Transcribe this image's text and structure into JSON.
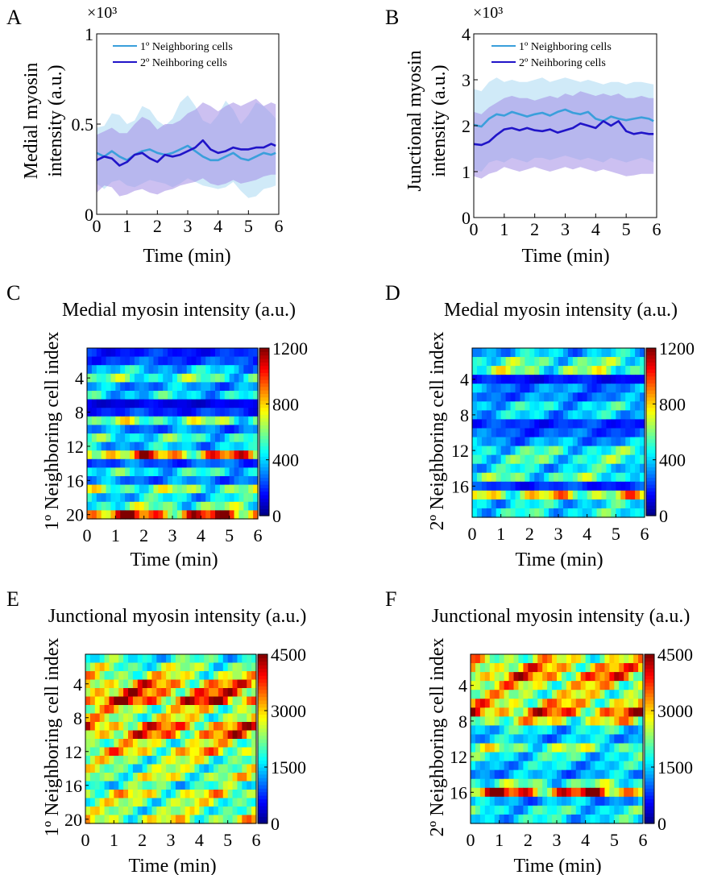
{
  "colors": {
    "series1": "#3a9fdb",
    "series2": "#2014c8",
    "band1": "#a9d8f2",
    "band2": "#a28de6"
  },
  "chart_data": [
    {
      "panel": "A",
      "type": "line",
      "title": "",
      "ylabel_line1": "Medial myosin",
      "ylabel_line2": "intensity (a.u.)",
      "xlabel": "Time (min)",
      "y_multiplier": "×10³",
      "xlim": [
        0,
        6
      ],
      "ylim": [
        0,
        1
      ],
      "xticks": [
        0,
        1,
        2,
        3,
        4,
        5,
        6
      ],
      "yticks": [
        0,
        0.5,
        1
      ],
      "ytick_labels": [
        "0",
        "0.5",
        "1"
      ],
      "legend_position": "top-left",
      "x": [
        0,
        0.25,
        0.5,
        0.75,
        1,
        1.25,
        1.5,
        1.75,
        2,
        2.25,
        2.5,
        2.75,
        3,
        3.25,
        3.5,
        3.75,
        4,
        4.25,
        4.5,
        4.75,
        5,
        5.25,
        5.5,
        5.75,
        5.9
      ],
      "series": [
        {
          "name": "1º Neighboring cells",
          "color_key": "series1",
          "band_color_key": "band1",
          "values": [
            0.34,
            0.32,
            0.35,
            0.32,
            0.3,
            0.33,
            0.35,
            0.36,
            0.34,
            0.33,
            0.34,
            0.36,
            0.38,
            0.35,
            0.32,
            0.3,
            0.3,
            0.32,
            0.34,
            0.31,
            0.3,
            0.32,
            0.34,
            0.33,
            0.34
          ],
          "lower": [
            0.17,
            0.14,
            0.18,
            0.19,
            0.16,
            0.15,
            0.17,
            0.19,
            0.18,
            0.17,
            0.15,
            0.17,
            0.2,
            0.18,
            0.16,
            0.15,
            0.14,
            0.15,
            0.18,
            0.13,
            0.09,
            0.1,
            0.14,
            0.15,
            0.16
          ],
          "upper": [
            0.48,
            0.49,
            0.56,
            0.55,
            0.5,
            0.52,
            0.6,
            0.58,
            0.52,
            0.49,
            0.53,
            0.62,
            0.66,
            0.6,
            0.52,
            0.5,
            0.55,
            0.63,
            0.58,
            0.5,
            0.55,
            0.62,
            0.6,
            0.56,
            0.53
          ]
        },
        {
          "name": "2º Neihboring cells",
          "color_key": "series2",
          "band_color_key": "band2",
          "values": [
            0.3,
            0.32,
            0.31,
            0.27,
            0.29,
            0.33,
            0.34,
            0.31,
            0.29,
            0.33,
            0.32,
            0.33,
            0.35,
            0.37,
            0.41,
            0.36,
            0.34,
            0.35,
            0.37,
            0.36,
            0.36,
            0.37,
            0.37,
            0.39,
            0.38
          ],
          "lower": [
            0.12,
            0.16,
            0.15,
            0.1,
            0.11,
            0.13,
            0.14,
            0.12,
            0.11,
            0.13,
            0.14,
            0.16,
            0.17,
            0.18,
            0.2,
            0.17,
            0.16,
            0.17,
            0.19,
            0.17,
            0.18,
            0.19,
            0.21,
            0.22,
            0.22
          ],
          "upper": [
            0.44,
            0.46,
            0.48,
            0.45,
            0.45,
            0.5,
            0.54,
            0.52,
            0.47,
            0.5,
            0.5,
            0.52,
            0.56,
            0.58,
            0.62,
            0.6,
            0.57,
            0.6,
            0.62,
            0.6,
            0.62,
            0.64,
            0.6,
            0.62,
            0.61
          ]
        }
      ]
    },
    {
      "panel": "B",
      "type": "line",
      "title": "",
      "ylabel_line1": "Junctional myosin",
      "ylabel_line2": "intensity (a.u.)",
      "xlabel": "Time (min)",
      "y_multiplier": "×10³",
      "xlim": [
        0,
        6
      ],
      "ylim": [
        0,
        4
      ],
      "xticks": [
        0,
        1,
        2,
        3,
        4,
        5,
        6
      ],
      "yticks": [
        0,
        1,
        2,
        3,
        4
      ],
      "ytick_labels": [
        "0",
        "1",
        "2",
        "3",
        "4"
      ],
      "legend_position": "top-left",
      "x": [
        0,
        0.25,
        0.5,
        0.75,
        1,
        1.25,
        1.5,
        1.75,
        2,
        2.25,
        2.5,
        2.75,
        3,
        3.25,
        3.5,
        3.75,
        4,
        4.25,
        4.5,
        4.75,
        5,
        5.25,
        5.5,
        5.75,
        5.9
      ],
      "series": [
        {
          "name": "1º Neighboring cells",
          "color_key": "series1",
          "band_color_key": "band1",
          "values": [
            2.02,
            1.98,
            2.15,
            2.25,
            2.22,
            2.3,
            2.25,
            2.2,
            2.25,
            2.28,
            2.22,
            2.3,
            2.35,
            2.28,
            2.25,
            2.3,
            2.15,
            2.1,
            2.2,
            2.15,
            2.12,
            2.15,
            2.18,
            2.15,
            2.1
          ],
          "lower": [
            1.05,
            1.0,
            1.2,
            1.25,
            1.2,
            1.3,
            1.25,
            1.2,
            1.3,
            1.3,
            1.25,
            1.3,
            1.35,
            1.3,
            1.25,
            1.3,
            1.25,
            1.2,
            1.3,
            1.25,
            1.2,
            1.25,
            1.3,
            1.25,
            1.2
          ],
          "upper": [
            2.8,
            2.75,
            2.95,
            3.05,
            2.95,
            3.0,
            2.95,
            2.95,
            3.0,
            3.05,
            2.95,
            3.0,
            3.05,
            3.0,
            2.95,
            3.0,
            2.95,
            2.9,
            2.95,
            2.95,
            2.9,
            2.95,
            2.95,
            2.92,
            2.9
          ]
        },
        {
          "name": "2º Neihboring cells",
          "color_key": "series2",
          "band_color_key": "band2",
          "values": [
            1.6,
            1.58,
            1.65,
            1.8,
            1.92,
            1.95,
            1.9,
            1.95,
            1.9,
            1.88,
            1.92,
            1.85,
            1.9,
            1.95,
            2.05,
            2.0,
            1.95,
            2.1,
            2.0,
            2.1,
            1.88,
            1.82,
            1.85,
            1.82,
            1.82
          ],
          "lower": [
            0.9,
            0.85,
            0.95,
            1.0,
            1.1,
            1.05,
            1.0,
            1.05,
            1.1,
            1.05,
            1.0,
            1.05,
            1.1,
            1.05,
            1.1,
            1.05,
            1.0,
            1.05,
            1.0,
            0.95,
            0.9,
            0.92,
            0.95,
            0.95,
            0.95
          ],
          "upper": [
            2.3,
            2.25,
            2.4,
            2.5,
            2.6,
            2.65,
            2.6,
            2.6,
            2.55,
            2.6,
            2.65,
            2.6,
            2.7,
            2.65,
            2.75,
            2.7,
            2.65,
            2.7,
            2.65,
            2.7,
            2.6,
            2.6,
            2.65,
            2.6,
            2.6
          ]
        }
      ]
    },
    {
      "panel": "C",
      "type": "heatmap",
      "title": "Medial myosin intensity (a.u.)",
      "xlabel": "Time (min)",
      "ylabel": "1º Neighboring cell index",
      "xticks": [
        0,
        1,
        2,
        3,
        4,
        5,
        6
      ],
      "yticks": [
        4,
        8,
        12,
        16,
        20
      ],
      "rows": 20,
      "cols": 36,
      "colorbar": {
        "min": 0,
        "max": 1200,
        "ticks": [
          0,
          400,
          800,
          1200
        ]
      },
      "row_means": [
        180,
        230,
        380,
        520,
        330,
        420,
        120,
        200,
        580,
        300,
        480,
        380,
        860,
        250,
        450,
        300,
        580,
        420,
        550,
        950
      ]
    },
    {
      "panel": "D",
      "type": "heatmap",
      "title": "Medial myosin intensity (a.u.)",
      "xlabel": "Time (min)",
      "ylabel": "2º Neighboring cell index",
      "xticks": [
        0,
        1,
        2,
        3,
        4,
        5,
        6
      ],
      "yticks": [
        4,
        8,
        12,
        16
      ],
      "rows": 19,
      "cols": 36,
      "colorbar": {
        "min": 0,
        "max": 1200,
        "ticks": [
          0,
          400,
          800,
          1200
        ]
      },
      "row_means": [
        380,
        520,
        580,
        160,
        300,
        300,
        420,
        380,
        200,
        250,
        330,
        480,
        500,
        420,
        520,
        200,
        720,
        420,
        450
      ]
    },
    {
      "panel": "E",
      "type": "heatmap",
      "title": "Junctional myosin intensity (a.u.)",
      "xlabel": "Time (min)",
      "ylabel": "1º Neighboring cell index",
      "xticks": [
        0,
        1,
        2,
        3,
        4,
        5,
        6
      ],
      "yticks": [
        4,
        8,
        12,
        16,
        20
      ],
      "rows": 20,
      "cols": 36,
      "colorbar": {
        "min": 0,
        "max": 4500,
        "ticks": [
          0,
          1500,
          3000,
          4500
        ]
      },
      "row_means": [
        1800,
        2200,
        2500,
        3100,
        3300,
        3600,
        2600,
        2500,
        3200,
        3200,
        2500,
        2800,
        2300,
        2200,
        2400,
        1900,
        2600,
        2300,
        2200,
        2500
      ]
    },
    {
      "panel": "F",
      "type": "heatmap",
      "title": "Junctional myosin intensity (a.u.)",
      "xlabel": "Time (min)",
      "ylabel": "2º Neighboring cell index",
      "xticks": [
        0,
        1,
        2,
        3,
        4,
        5,
        6
      ],
      "yticks": [
        4,
        8,
        12,
        16
      ],
      "rows": 19,
      "cols": 36,
      "colorbar": {
        "min": 0,
        "max": 4500,
        "ticks": [
          0,
          1500,
          3000,
          4500
        ]
      },
      "row_means": [
        2600,
        3000,
        3200,
        2700,
        2500,
        2800,
        3300,
        2600,
        1600,
        1400,
        2200,
        1700,
        1500,
        1300,
        2000,
        3600,
        1300,
        1700,
        1600
      ]
    }
  ]
}
